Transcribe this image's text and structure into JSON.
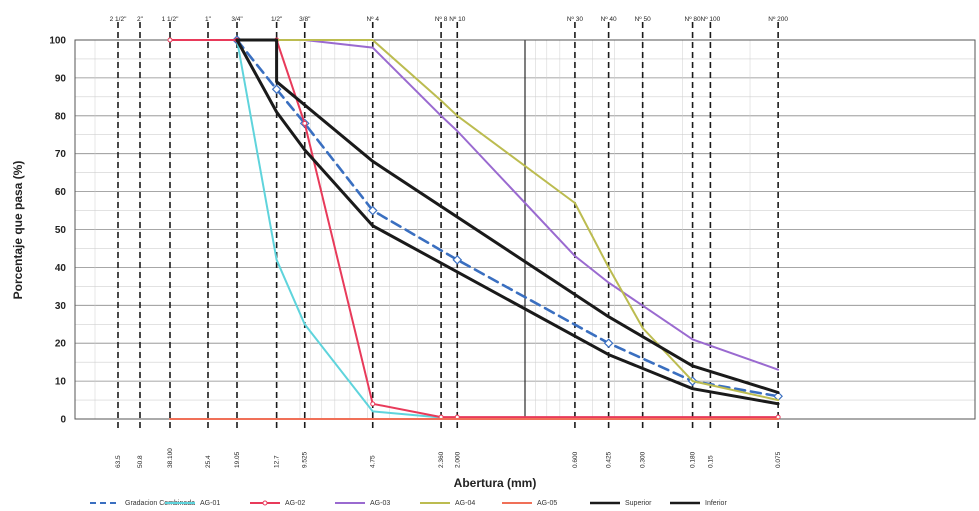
{
  "chart_data": {
    "type": "line",
    "xlabel": "Abertura (mm)",
    "ylabel": "Porcentaje que pasa (%)",
    "x_scale": "log",
    "ylim": [
      0,
      100
    ],
    "y_ticks": [
      0,
      10,
      20,
      30,
      40,
      50,
      60,
      70,
      80,
      90,
      100
    ],
    "sieves": [
      {
        "name": "2 1/2\"",
        "size": "63.5",
        "mm": 63.5
      },
      {
        "name": "2\"",
        "size": "50.8",
        "mm": 50.8
      },
      {
        "name": "1 1/2\"",
        "size": "38.100",
        "mm": 38.1
      },
      {
        "name": "1\"",
        "size": "25.4",
        "mm": 25.4
      },
      {
        "name": "3/4\"",
        "size": "19.05",
        "mm": 19.05
      },
      {
        "name": "1/2\"",
        "size": "12.7",
        "mm": 12.7
      },
      {
        "name": "3/8\"",
        "size": "9.525",
        "mm": 9.525
      },
      {
        "name": "Nº 4",
        "size": "4.75",
        "mm": 4.75
      },
      {
        "name": "Nº 8",
        "size": "2.360",
        "mm": 2.36
      },
      {
        "name": "Nº 10",
        "size": "2.000",
        "mm": 2.0
      },
      {
        "name": "Nº 30",
        "size": "0.600",
        "mm": 0.6
      },
      {
        "name": "Nº 40",
        "size": "0.425",
        "mm": 0.425
      },
      {
        "name": "Nº 50",
        "size": "0.300",
        "mm": 0.3
      },
      {
        "name": "Nº 80",
        "size": "0.180",
        "mm": 0.18
      },
      {
        "name": "Nº 100",
        "size": "0.15",
        "mm": 0.15
      },
      {
        "name": "Nº 200",
        "size": "0.075",
        "mm": 0.075
      }
    ],
    "series": [
      {
        "name": "Gradacion Combinada",
        "color": "#3a6fc0",
        "style": "dashed",
        "marker": "diamond",
        "points": [
          [
            19.05,
            100
          ],
          [
            12.7,
            87
          ],
          [
            9.525,
            78
          ],
          [
            4.75,
            55
          ],
          [
            2.0,
            42
          ],
          [
            0.425,
            20
          ],
          [
            0.18,
            10
          ],
          [
            0.075,
            6
          ]
        ]
      },
      {
        "name": "AG-01",
        "color": "#5fd4dc",
        "style": "solid",
        "marker": "none",
        "points": [
          [
            19.05,
            100
          ],
          [
            12.7,
            42
          ],
          [
            9.525,
            25
          ],
          [
            4.75,
            2
          ],
          [
            2.0,
            0
          ],
          [
            0.075,
            0
          ]
        ]
      },
      {
        "name": "AG-02",
        "color": "#e83a5a",
        "style": "solid",
        "marker": "circle",
        "points": [
          [
            38.1,
            100
          ],
          [
            19.05,
            100
          ],
          [
            12.7,
            100
          ],
          [
            9.525,
            78
          ],
          [
            4.75,
            4
          ],
          [
            2.36,
            0.5
          ],
          [
            2.0,
            0.5
          ],
          [
            0.075,
            0.5
          ]
        ]
      },
      {
        "name": "AG-03",
        "color": "#9a6ad0",
        "style": "solid",
        "marker": "none",
        "points": [
          [
            19.05,
            100
          ],
          [
            9.525,
            100
          ],
          [
            4.75,
            98
          ],
          [
            2.36,
            80
          ],
          [
            2.0,
            76
          ],
          [
            0.6,
            43
          ],
          [
            0.425,
            36
          ],
          [
            0.18,
            21
          ],
          [
            0.075,
            13
          ]
        ]
      },
      {
        "name": "AG-04",
        "color": "#bcbc50",
        "style": "solid",
        "marker": "none",
        "points": [
          [
            19.05,
            100
          ],
          [
            9.525,
            100
          ],
          [
            4.75,
            100
          ],
          [
            2.36,
            84
          ],
          [
            2.0,
            80
          ],
          [
            0.6,
            57
          ],
          [
            0.425,
            40
          ],
          [
            0.3,
            24
          ],
          [
            0.18,
            10
          ],
          [
            0.075,
            5
          ]
        ]
      },
      {
        "name": "AG-05",
        "color": "#f07058",
        "style": "solid",
        "marker": "none",
        "points": [
          [
            38.1,
            0
          ],
          [
            0.075,
            0
          ]
        ]
      },
      {
        "name": "Superior",
        "color": "#1a1a1a",
        "style": "solid",
        "marker": "none",
        "points": [
          [
            19.05,
            100
          ],
          [
            12.7,
            100
          ],
          [
            12.7,
            89
          ],
          [
            4.75,
            68
          ],
          [
            0.425,
            27
          ],
          [
            0.18,
            14
          ],
          [
            0.075,
            7
          ]
        ]
      },
      {
        "name": "Inferior",
        "color": "#1a1a1a",
        "style": "solid",
        "marker": "none",
        "points": [
          [
            19.05,
            100
          ],
          [
            12.7,
            81
          ],
          [
            9.525,
            71
          ],
          [
            4.75,
            51
          ],
          [
            0.425,
            17
          ],
          [
            0.18,
            8
          ],
          [
            0.075,
            4
          ]
        ]
      }
    ],
    "legend_position": "bottom",
    "grid": true
  }
}
